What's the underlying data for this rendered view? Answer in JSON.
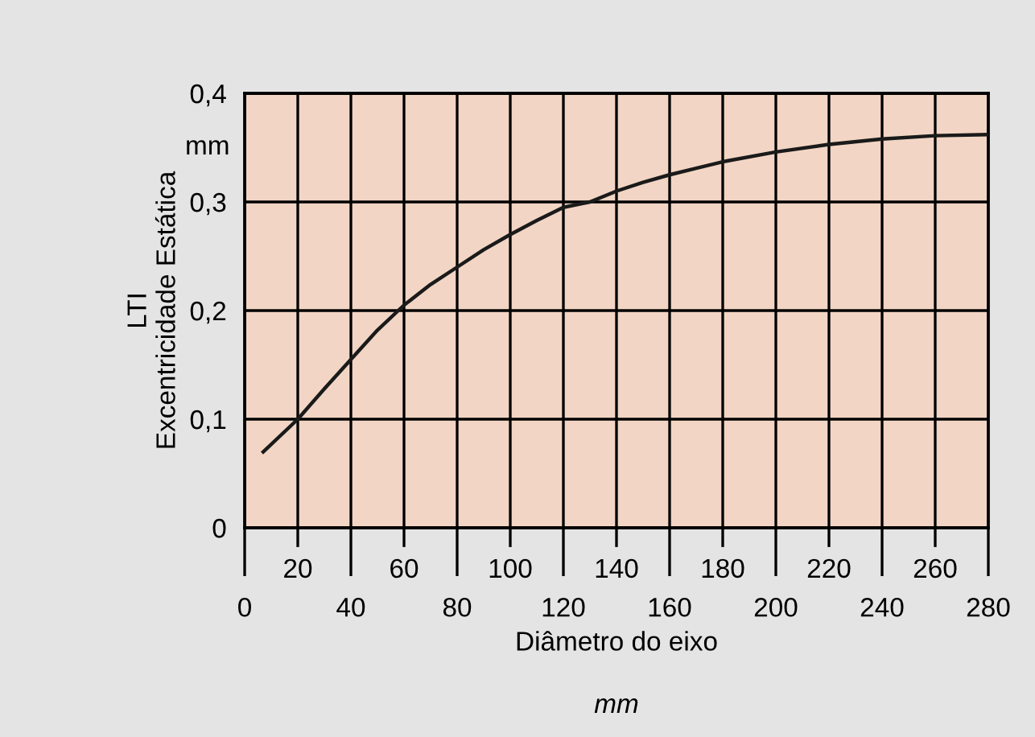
{
  "chart_data": {
    "type": "line",
    "xlabel": "Diâmetro do eixo",
    "ylabel": "LTI\nExcentricidade Estática",
    "annotations": [
      "mm",
      "mm"
    ],
    "x": [
      7,
      20,
      30,
      40,
      50,
      60,
      70,
      80,
      90,
      100,
      110,
      120,
      130,
      140,
      150,
      160,
      170,
      180,
      200,
      220,
      240,
      260,
      280
    ],
    "series": [
      {
        "color": "#1a1a1a",
        "values": [
          0.07,
          0.1,
          0.128,
          0.155,
          0.182,
          0.205,
          0.224,
          0.24,
          0.256,
          0.27,
          0.283,
          0.295,
          0.3,
          0.31,
          0.318,
          0.325,
          0.331,
          0.337,
          0.346,
          0.353,
          0.358,
          0.361,
          0.362
        ]
      }
    ],
    "xlim": [
      0,
      280
    ],
    "xticks": [
      0,
      40,
      80,
      120,
      160,
      200,
      240,
      280
    ],
    "x2lim": [
      0,
      280
    ],
    "x2ticks": [
      20,
      60,
      100,
      140,
      180,
      220,
      260
    ],
    "ylim": [
      0,
      0.4
    ],
    "yticks": [
      {
        "value": 0,
        "label": "0"
      },
      {
        "value": 0.1,
        "label": "0,1"
      },
      {
        "value": 0.2,
        "label": "0,2"
      },
      {
        "value": 0.3,
        "label": "0,3"
      },
      {
        "value": 0.4,
        "label": "0,4"
      }
    ],
    "grid": true,
    "legend": false,
    "marker": "none",
    "line_style": "solid"
  }
}
